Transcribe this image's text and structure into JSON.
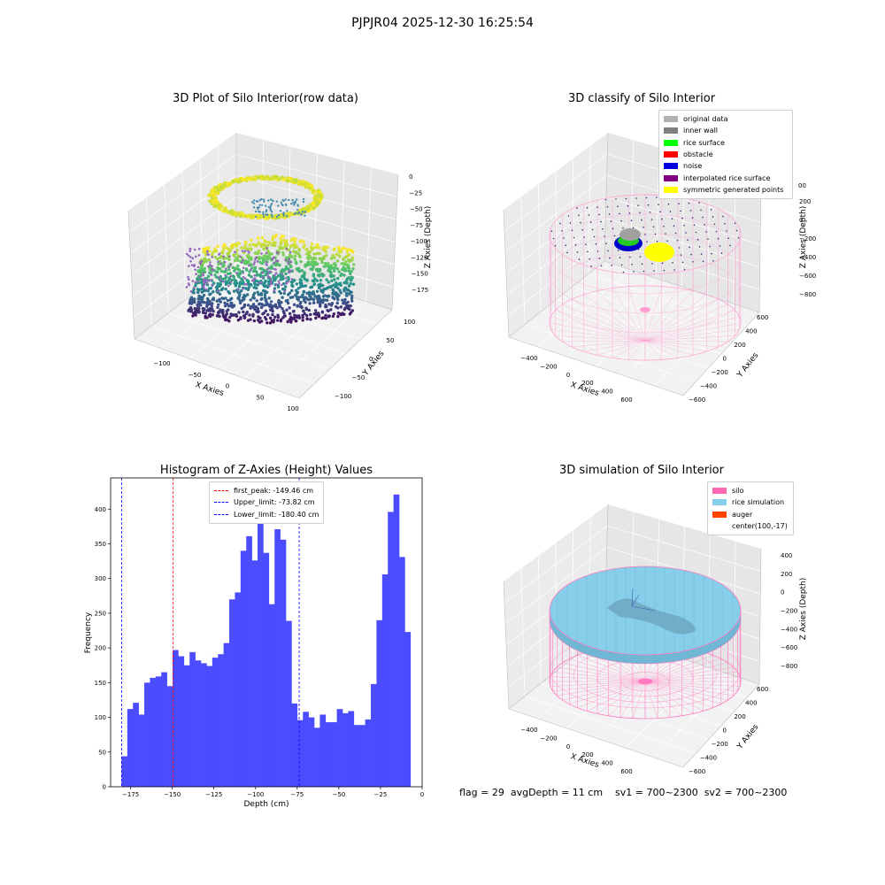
{
  "suptitle": "PJPJR04 2025-12-30 16:25:54",
  "plot1": {
    "title": "3D Plot of Silo Interior(row data)",
    "xlabel": "X Axies",
    "ylabel": "Y Axies",
    "zlabel": "Z Axies (Depth)",
    "xticks": [
      "−100",
      "−50",
      "0",
      "50",
      "100"
    ],
    "yticks": [
      "100",
      "50",
      "0",
      "−50",
      "−100"
    ],
    "zticks": [
      "0",
      "−25",
      "−50",
      "−75",
      "−100",
      "−125",
      "−150",
      "−175"
    ]
  },
  "plot2": {
    "title": "3D classify of Silo Interior",
    "xlabel": "X Axies",
    "ylabel": "Y Axies",
    "zlabel": "Z Axies (Depth)",
    "xticks": [
      "−400",
      "−200",
      "0",
      "200",
      "400",
      "600"
    ],
    "yticks": [
      "600",
      "400",
      "200",
      "0",
      "−200",
      "−400",
      "−600"
    ],
    "zticks": [
      "200",
      "0",
      "−200",
      "−400",
      "−600",
      "−800"
    ],
    "ztick_partial": "00",
    "legend": [
      {
        "label": "original data",
        "color": "#b2b2b2"
      },
      {
        "label": "inner wall",
        "color": "#808080"
      },
      {
        "label": "rice surface",
        "color": "#00ff00"
      },
      {
        "label": "obstacle",
        "color": "#ff0000"
      },
      {
        "label": "noise",
        "color": "#0000e0"
      },
      {
        "label": "interpolated rice surface",
        "color": "#800080"
      },
      {
        "label": "symmetric generated points",
        "color": "#ffff00"
      }
    ]
  },
  "plot3": {
    "title": "Histogram of Z-Axies (Height) Values",
    "xlabel": "Depth (cm)",
    "ylabel": "Frequency",
    "legend": [
      {
        "label": "first_peak: -149.46 cm",
        "color": "#ff0000"
      },
      {
        "label": "Upper_limit: -73.82 cm",
        "color": "#0000ff"
      },
      {
        "label": "Lower_limit: -180.40 cm",
        "color": "#0000ff"
      }
    ]
  },
  "plot4": {
    "title": "3D simulation of Silo Interior",
    "xlabel": "X Axies",
    "ylabel": "Y Axies",
    "zlabel": "Z Axies (Depth)",
    "xticks": [
      "−400",
      "−200",
      "0",
      "200",
      "400",
      "600"
    ],
    "yticks": [
      "600",
      "400",
      "200",
      "0",
      "−200",
      "−400",
      "−600"
    ],
    "zticks": [
      "400",
      "200",
      "0",
      "−200",
      "−400",
      "−600",
      "−800"
    ],
    "legend": [
      {
        "label": "silo",
        "color": "#ff69b4"
      },
      {
        "label": "rice simulation",
        "color": "#87ceeb"
      },
      {
        "label": "auger",
        "color": "#ff4500"
      },
      {
        "label": "center(100,-17)",
        "color": ""
      }
    ]
  },
  "footer": "flag = 29  avgDepth = 11 cm    sv1 = 700~2300  sv2 = 700~2300",
  "chart_data": {
    "type": "bar",
    "title": "Histogram of Z-Axies (Height) Values",
    "xlabel": "Depth (cm)",
    "ylabel": "Frequency",
    "xlim": [
      -187,
      0
    ],
    "ylim": [
      0,
      445
    ],
    "xticks": [
      -175,
      -150,
      -125,
      -100,
      -75,
      -50,
      -25,
      0
    ],
    "yticks": [
      0,
      50,
      100,
      150,
      200,
      250,
      300,
      350,
      400
    ],
    "bin_start": -180.4,
    "bin_width": 3.4,
    "values": [
      44,
      112,
      121,
      104,
      150,
      157,
      159,
      165,
      145,
      197,
      188,
      175,
      194,
      182,
      178,
      174,
      186,
      191,
      207,
      270,
      280,
      340,
      361,
      326,
      380,
      337,
      263,
      371,
      356,
      239,
      120,
      96,
      108,
      100,
      85,
      104,
      93,
      93,
      112,
      106,
      109,
      89,
      89,
      97,
      148,
      240,
      306,
      396,
      421,
      331,
      223
    ],
    "vlines": [
      {
        "x": -149.46,
        "color": "#ff0000",
        "label": "first_peak: -149.46 cm"
      },
      {
        "x": -73.82,
        "color": "#0000ff",
        "label": "Upper_limit: -73.82 cm"
      },
      {
        "x": -180.4,
        "color": "#0000ff",
        "label": "Lower_limit: -180.40 cm"
      }
    ],
    "bar_color": "#4c4cff",
    "legend_position": "top-center"
  }
}
